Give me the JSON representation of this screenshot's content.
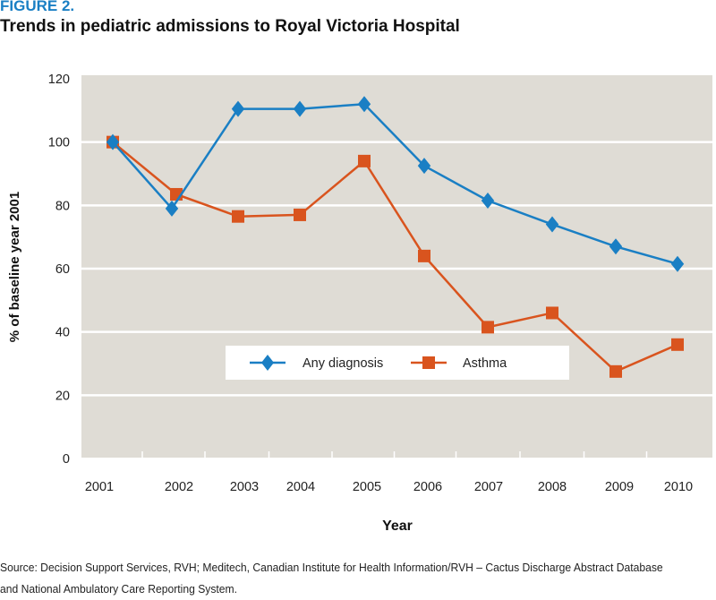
{
  "figure_label": "FIGURE 2.",
  "title": "Trends in pediatric admissions to Royal Victoria Hospital",
  "source_line1": "Source: Decision Support Services, RVH; Meditech, Canadian Institute for Health Information/RVH – Cactus Discharge Abstract Database",
  "source_line2": "and National Ambulatory Care Reporting System.",
  "chart_data": {
    "type": "line",
    "title": "Trends in pediatric admissions to Royal Victoria Hospital",
    "xlabel": "Year",
    "ylabel": "% of baseline year 2001",
    "ylim": [
      0,
      120
    ],
    "yticks": [
      0,
      20,
      40,
      60,
      80,
      100,
      120
    ],
    "grid": true,
    "legend_position": "lower-center",
    "x": [
      "2001",
      "2002",
      "2003",
      "2004",
      "2005",
      "2006",
      "2007",
      "2008",
      "2009",
      "2010"
    ],
    "series": [
      {
        "name": "Any diagnosis",
        "color": "#1a7fc4",
        "marker": "diamond",
        "values": [
          100,
          79,
          110.5,
          110.5,
          112,
          92.5,
          81.5,
          74,
          67,
          61.5
        ]
      },
      {
        "name": "Asthma",
        "color": "#d9541e",
        "marker": "square",
        "values": [
          100,
          83.5,
          76.5,
          77,
          94,
          64,
          41.5,
          46,
          27.5,
          36
        ]
      }
    ]
  }
}
